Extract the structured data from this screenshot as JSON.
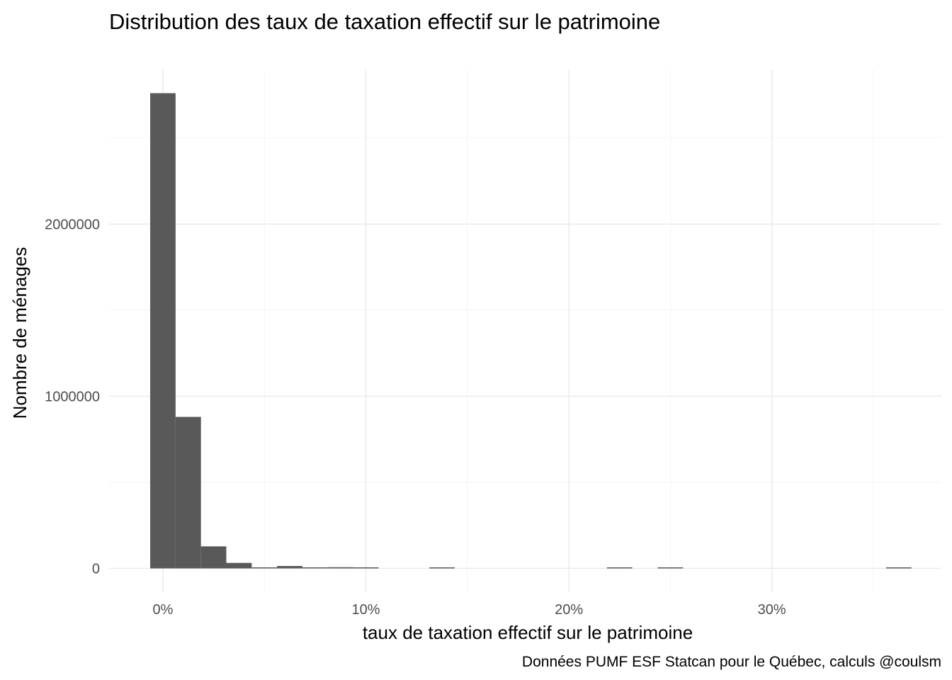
{
  "chart_data": {
    "type": "bar",
    "title": "Distribution des  taux de taxation effectif sur le patrimoine",
    "xlabel": "taux de taxation effectif sur le patrimoine",
    "ylabel": "Nombre de ménages",
    "caption": "Données PUMF ESF Statcan pour le Québec, calculs @coulsm",
    "bar_color": "#595959",
    "grid": true,
    "legend": "none",
    "x_format": "percent",
    "xlim": [
      -0.0265,
      0.3835
    ],
    "ylim": [
      -138000,
      2898000
    ],
    "x_ticks": [
      {
        "value": 0.0,
        "label": "0%"
      },
      {
        "value": 0.1,
        "label": "10%"
      },
      {
        "value": 0.2,
        "label": "20%"
      },
      {
        "value": 0.3,
        "label": "30%"
      }
    ],
    "x_minor_ticks": [
      0.05,
      0.15,
      0.25,
      0.35
    ],
    "y_ticks": [
      {
        "value": 0,
        "label": "0"
      },
      {
        "value": 1000000,
        "label": "1000000"
      },
      {
        "value": 2000000,
        "label": "2000000"
      }
    ],
    "y_minor_ticks": [
      500000,
      1500000,
      2500000
    ],
    "bins": [
      {
        "x0": -0.00625,
        "x1": 0.00625,
        "count": 2760000
      },
      {
        "x0": 0.00625,
        "x1": 0.01875,
        "count": 880000
      },
      {
        "x0": 0.01875,
        "x1": 0.03125,
        "count": 128000
      },
      {
        "x0": 0.03125,
        "x1": 0.04375,
        "count": 32000
      },
      {
        "x0": 0.04375,
        "x1": 0.05625,
        "count": 4000
      },
      {
        "x0": 0.05625,
        "x1": 0.06875,
        "count": 14000
      },
      {
        "x0": 0.06875,
        "x1": 0.08125,
        "count": 3000
      },
      {
        "x0": 0.08125,
        "x1": 0.09375,
        "count": 7000
      },
      {
        "x0": 0.09375,
        "x1": 0.10625,
        "count": 4000
      },
      {
        "x0": 0.13125,
        "x1": 0.14375,
        "count": 3000
      },
      {
        "x0": 0.21875,
        "x1": 0.23125,
        "count": 2000
      },
      {
        "x0": 0.24375,
        "x1": 0.25625,
        "count": 2000
      },
      {
        "x0": 0.35625,
        "x1": 0.36875,
        "count": 2000
      }
    ]
  }
}
